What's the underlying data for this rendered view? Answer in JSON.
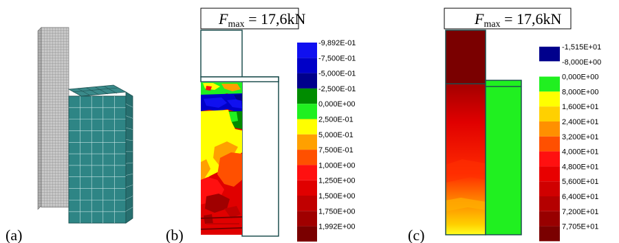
{
  "panels": {
    "a": {
      "label": "(a)"
    },
    "b": {
      "label": "(b)",
      "force_box": {
        "symbol": "F",
        "subscript": "max",
        "value": " = 17,6kN"
      },
      "legend": [
        {
          "label": "-9,892E-01",
          "color": "#1010f0"
        },
        {
          "label": "-7,500E-01",
          "color": "#0000c8"
        },
        {
          "label": "-5,000E-01",
          "color": "#00008c"
        },
        {
          "label": "-2,500E-01",
          "color": "#008c00"
        },
        {
          "label": "0,000E+00",
          "color": "#20f020"
        },
        {
          "label": "2,500E-01",
          "color": "#ffff00"
        },
        {
          "label": "5,000E-01",
          "color": "#ffa000"
        },
        {
          "label": "7,500E-01",
          "color": "#ff5000"
        },
        {
          "label": "1,000E+00",
          "color": "#ff1010"
        },
        {
          "label": "1,250E+00",
          "color": "#e00000"
        },
        {
          "label": "1,500E+00",
          "color": "#c00000"
        },
        {
          "label": "1,750E+00",
          "color": "#a00000"
        },
        {
          "label": "1,992E+00",
          "color": "#7a0000"
        }
      ]
    },
    "c": {
      "label": "(c)",
      "force_box": {
        "symbol": "F",
        "subscript": "max",
        "value": " = 17,6kN"
      },
      "legend": [
        {
          "label": "-1,515E+01",
          "color": "#00008c"
        },
        {
          "label": "-8,000E+00",
          "color": "#ffffff"
        },
        {
          "label": "0,000E+00",
          "color": "#20f020"
        },
        {
          "label": "8,000E+00",
          "color": "#ffff00"
        },
        {
          "label": "1,600E+01",
          "color": "#ffd000"
        },
        {
          "label": "2,400E+01",
          "color": "#ff9000"
        },
        {
          "label": "3,200E+01",
          "color": "#ff5000"
        },
        {
          "label": "4,000E+01",
          "color": "#ff1010"
        },
        {
          "label": "4,800E+01",
          "color": "#e80000"
        },
        {
          "label": "5,600E+01",
          "color": "#d00000"
        },
        {
          "label": "6,400E+01",
          "color": "#b40000"
        },
        {
          "label": "7,200E+01",
          "color": "#980000"
        },
        {
          "label": "7,705E+01",
          "color": "#7a0000"
        }
      ]
    }
  }
}
